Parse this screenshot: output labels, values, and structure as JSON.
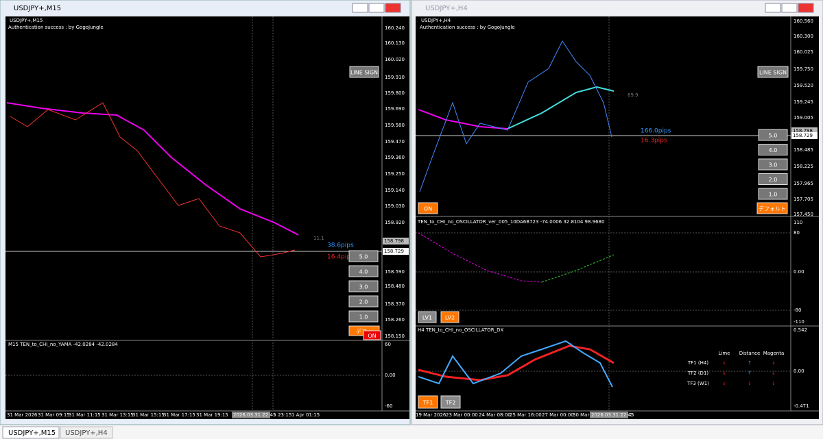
{
  "left": {
    "window_title": "USDJPY+,M15",
    "symbol_label": "USDJPY+,M15",
    "auth": "Authentication success : by GogoJungle",
    "price_ticks": [
      "160.240",
      "160.130",
      "160.020",
      "159.910",
      "159.800",
      "159.690",
      "159.580",
      "159.470",
      "159.360",
      "159.250",
      "159.140",
      "159.030",
      "158.920",
      "158.590",
      "158.480",
      "158.370",
      "158.260",
      "158.150"
    ],
    "ask_box": "158.798",
    "bid_box": "158.729",
    "line_sign": "LINE SIGN",
    "level_text": "11.1",
    "pips_blue": "38.6pips",
    "pips_red": "16.4pips",
    "buttons": [
      "5.0",
      "4.0",
      "3.0",
      "2.0",
      "1.0"
    ],
    "default_button": "デフォ",
    "on_button": "ON",
    "sub_title": "M15 TEN_to_CHI_no_YAMA -42.0284 -42.0284",
    "sub_ticks": [
      "60",
      "0.00",
      "-60"
    ],
    "time_labels": [
      "31 Mar 2026",
      "31 Mar 09:15",
      "31 Mar 11:15",
      "31 Mar 13:15",
      "31 Mar 15:15",
      "31 Mar 17:15",
      "31 Mar 19:15",
      "2026.03.31 22:45",
      "r 23:15",
      "1 Apr 01:15"
    ]
  },
  "right": {
    "window_title": "USDJPY+,H4",
    "symbol_label": "USDJPY+,H4",
    "auth": "Authentication success : by GogoJungle",
    "price_ticks": [
      "160.560",
      "160.300",
      "160.025",
      "159.750",
      "159.520",
      "159.245",
      "159.005",
      "158.485",
      "158.225",
      "157.965",
      "157.705",
      "157.450"
    ],
    "ask_box": "158.798",
    "bid_box": "158.729",
    "line_sign": "LINE SIGN",
    "level_text": "69.9",
    "pips_blue": "166.0pips",
    "pips_red": "16.3pips",
    "buttons": [
      "5.0",
      "4.0",
      "3.0",
      "2.0",
      "1.0"
    ],
    "default_button": "デフォルト",
    "on_button": "ON",
    "osc_title": "TEN_to_CHI_no_OSCILLATOR_ver_005_10DA6B723 -74.0006 32.8104 98.9680",
    "osc_ticks": [
      "110",
      "80",
      "0.00",
      "-80",
      "-110"
    ],
    "lv_buttons": [
      "LV1",
      "LV2"
    ],
    "dx_title": "H4 TEN_to_CHI_no_OSCILLATOR_DX",
    "dx_ticks": [
      "0.542",
      "0.00",
      "-0.471"
    ],
    "table": {
      "headers": [
        "Lime",
        "Distance",
        "Magenta"
      ],
      "rows": [
        [
          "TF1 (H4)",
          "↓",
          "↑",
          "↓"
        ],
        [
          "TF2 (D1)",
          "↓",
          "↑",
          "↓"
        ],
        [
          "TF3 (W1)",
          "↓",
          "↓",
          "↓"
        ]
      ]
    },
    "tf_buttons": [
      "TF1",
      "TF2"
    ],
    "time_labels": [
      "19 Mar 2026",
      "23 Mar 00:00",
      "24 Mar 08:00",
      "25 Mar 16:00",
      "27 Mar 00:00",
      "30 Mar",
      "2026.03.31 22:45",
      "0"
    ]
  },
  "tabs": [
    "USDJPY+,M15",
    "USDJPY+,H4"
  ]
}
